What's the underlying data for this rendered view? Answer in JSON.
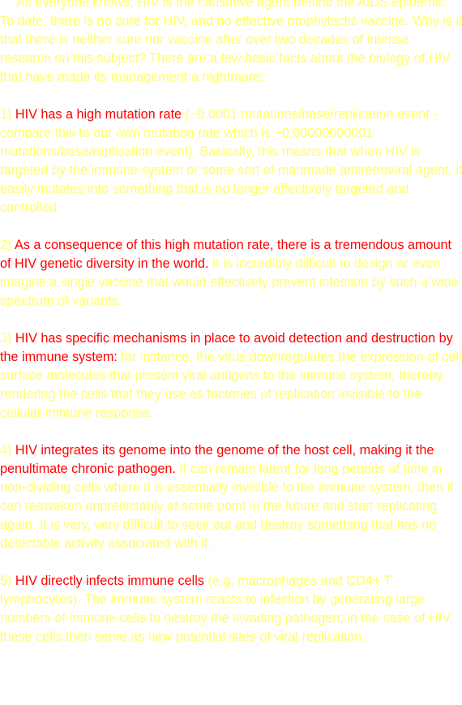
{
  "colors": {
    "body_text": "#ffff66",
    "highlight": "#ff0000",
    "background": "#ffffff"
  },
  "intro": "As everyone knows, HIV is the causative agent behind the AIDS epidemic. To date, there is no cure for HIV, and no effective prophylactic vaccine. Why is it that there is neither cure nor vaccine after over two decades of intense research on this subject? There are a few basic facts about the biology of HIV that have made its management a nightmare:",
  "points": [
    {
      "number": "1)",
      "highlight": "HIV has a high mutation rate",
      "text": "(~0.0001 mutations/base/replication event - compare this to our own mutation rate which is ~0.00000000001 mutations/base/replication event). Basically, this means that when HIV is targeted by the immune system or some sort of manmade antiretroviral agent, it easily mutates into something that is no longer effectively targeted and controlled."
    },
    {
      "number": "2)",
      "highlight": "As a consequence of this high mutation rate, there is a tremendous amount of HIV genetic diversity in the world.",
      "text": "It is incredibly difficult to design or even imagine a single vaccine that would effectively prevent infection by such a wide spectrum of variants."
    },
    {
      "number": "3)",
      "highlight": "HIV has specific mechanisms in place to avoid detection and destruction by the immune system:",
      "text": "for instance, the virus downregulates the expression of cell surface molecules that present viral antigens to the immune system, thereby rendering the cells that they use as factories of replication invisible to the cellular immune response."
    },
    {
      "number": "4)",
      "highlight": "HIV integrates its genome into the genome of the host cell, making it the penultimate chronic pathogen.",
      "text": "It can remain latent for long periods of time in non-dividing cells where it is essentially invisible to the immune system, then it can reawaken unpredictably at some point in the future and start replicating again. It is very, very difficult to seek out and destroy something that has no detectable activity associated with it."
    },
    {
      "number": "5)",
      "highlight": "HIV directly infects immune cells",
      "text": "(e.g. macrophages and CD4+ T lymphocytes). The immune system reacts to infection by generating large numbers of immune cells to destroy the invading pathogen; in the case of HIV, these cells then serve as new potential sites of viral replication."
    }
  ]
}
